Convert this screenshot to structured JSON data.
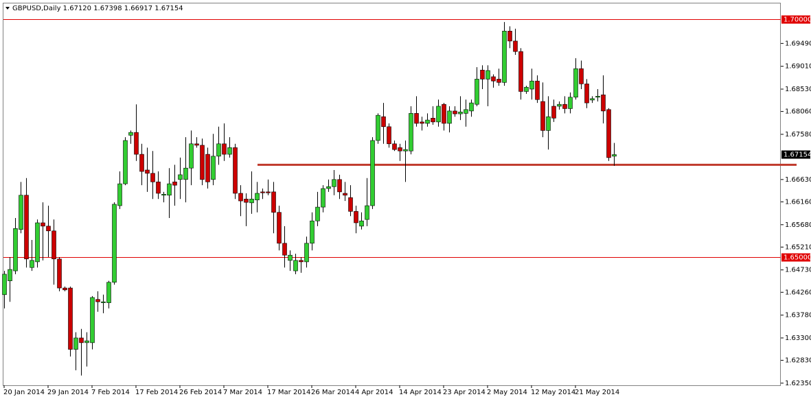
{
  "chart_data": {
    "type": "candlestick",
    "title": "GBPUSD,Daily 1.67120 1.67398 1.66917 1.67154",
    "up_color": "#32cd32",
    "down_color": "#cc0000",
    "categories": [
      "20 Jan 2014",
      null,
      null,
      null,
      null,
      null,
      null,
      null,
      "29 Jan 2014",
      null,
      null,
      null,
      null,
      null,
      null,
      null,
      "7 Feb 2014",
      null,
      null,
      null,
      null,
      null,
      null,
      null,
      "17 Feb 2014",
      null,
      null,
      null,
      null,
      null,
      null,
      null,
      "26 Feb 2014",
      null,
      null,
      null,
      null,
      null,
      null,
      null,
      "7 Mar 2014",
      null,
      null,
      null,
      null,
      null,
      null,
      null,
      "17 Mar 2014",
      null,
      null,
      null,
      null,
      null,
      null,
      null,
      "26 Mar 2014",
      null,
      null,
      null,
      null,
      null,
      null,
      null,
      "4 Apr 2014",
      null,
      null,
      null,
      null,
      null,
      null,
      null,
      "14 Apr 2014",
      null,
      null,
      null,
      null,
      null,
      null,
      null,
      "23 Apr 2014",
      null,
      null,
      null,
      null,
      null,
      null,
      null,
      "2 May 2014",
      null,
      null,
      null,
      null,
      null,
      null,
      null,
      "12 May 2014",
      null,
      null,
      null,
      null,
      null,
      null,
      null,
      "21 May 2014",
      null,
      null,
      null,
      null,
      null,
      null,
      null
    ],
    "ohlc": [
      [
        1.6421,
        1.6471,
        1.6392,
        1.6464
      ],
      [
        1.645,
        1.65,
        1.6406,
        1.6474
      ],
      [
        1.6471,
        1.6582,
        1.6464,
        1.656
      ],
      [
        1.6558,
        1.6658,
        1.655,
        1.663
      ],
      [
        1.663,
        1.6666,
        1.6478,
        1.6496
      ],
      [
        1.6478,
        1.6536,
        1.6471,
        1.6493
      ],
      [
        1.649,
        1.6579,
        1.6478,
        1.6572
      ],
      [
        1.6572,
        1.6615,
        1.6493,
        1.6565
      ],
      [
        1.6565,
        1.6608,
        1.65,
        1.6555
      ],
      [
        1.6555,
        1.6579,
        1.6442,
        1.6496
      ],
      [
        1.6496,
        1.65,
        1.6428,
        1.6435
      ],
      [
        1.6435,
        1.6438,
        1.6428,
        1.6431
      ],
      [
        1.6435,
        1.6438,
        1.6291,
        1.6306
      ],
      [
        1.6306,
        1.6342,
        1.6262,
        1.633
      ],
      [
        1.633,
        1.6349,
        1.6251,
        1.632
      ],
      [
        1.632,
        1.6342,
        1.627,
        1.6324
      ],
      [
        1.632,
        1.6418,
        1.6306,
        1.6415
      ],
      [
        1.6411,
        1.6428,
        1.6385,
        1.6406
      ],
      [
        1.6404,
        1.6421,
        1.6382,
        1.6406
      ],
      [
        1.6404,
        1.645,
        1.6392,
        1.6447
      ],
      [
        1.6447,
        1.6615,
        1.6442,
        1.6611
      ],
      [
        1.6608,
        1.668,
        1.6601,
        1.6654
      ],
      [
        1.6654,
        1.6752,
        1.6651,
        1.6745
      ],
      [
        1.6756,
        1.6766,
        1.6738,
        1.6762
      ],
      [
        1.6762,
        1.6821,
        1.6702,
        1.6716
      ],
      [
        1.6716,
        1.6738,
        1.6651,
        1.668
      ],
      [
        1.6683,
        1.673,
        1.6637,
        1.6676
      ],
      [
        1.6676,
        1.6723,
        1.6622,
        1.6658
      ],
      [
        1.6658,
        1.668,
        1.6622,
        1.6634
      ],
      [
        1.663,
        1.6637,
        1.6615,
        1.6632
      ],
      [
        1.663,
        1.6687,
        1.6582,
        1.6654
      ],
      [
        1.6658,
        1.6694,
        1.6608,
        1.6651
      ],
      [
        1.6663,
        1.6709,
        1.6622,
        1.6673
      ],
      [
        1.6663,
        1.6752,
        1.6615,
        1.6687
      ],
      [
        1.6687,
        1.6766,
        1.6651,
        1.6738
      ],
      [
        1.6738,
        1.6752,
        1.673,
        1.6735
      ],
      [
        1.6735,
        1.6749,
        1.6651,
        1.6663
      ],
      [
        1.6716,
        1.673,
        1.6644,
        1.6658
      ],
      [
        1.6663,
        1.6759,
        1.6651,
        1.6712
      ],
      [
        1.6712,
        1.6774,
        1.6694,
        1.6738
      ],
      [
        1.6738,
        1.6781,
        1.6702,
        1.6716
      ],
      [
        1.6716,
        1.6752,
        1.6709,
        1.673
      ],
      [
        1.673,
        1.6738,
        1.6622,
        1.6634
      ],
      [
        1.6634,
        1.6651,
        1.6586,
        1.6618
      ],
      [
        1.6622,
        1.6634,
        1.6565,
        1.6615
      ],
      [
        1.6614,
        1.668,
        1.6591,
        1.6622
      ],
      [
        1.662,
        1.6658,
        1.6594,
        1.6634
      ],
      [
        1.6637,
        1.6644,
        1.6622,
        1.6635
      ],
      [
        1.6637,
        1.6663,
        1.663,
        1.6635
      ],
      [
        1.6637,
        1.6658,
        1.655,
        1.6594
      ],
      [
        1.6594,
        1.6608,
        1.6514,
        1.6529
      ],
      [
        1.6529,
        1.6565,
        1.6478,
        1.6504
      ],
      [
        1.6493,
        1.6514,
        1.6471,
        1.6504
      ],
      [
        1.6471,
        1.6507,
        1.6464,
        1.6493
      ],
      [
        1.6493,
        1.65,
        1.6467,
        1.649
      ],
      [
        1.649,
        1.6543,
        1.6478,
        1.6529
      ],
      [
        1.6529,
        1.6594,
        1.6514,
        1.6576
      ],
      [
        1.6576,
        1.6637,
        1.6565,
        1.6605
      ],
      [
        1.6605,
        1.6651,
        1.6594,
        1.6644
      ],
      [
        1.6644,
        1.6663,
        1.6637,
        1.6648
      ],
      [
        1.6648,
        1.6683,
        1.663,
        1.6663
      ],
      [
        1.6663,
        1.6673,
        1.6622,
        1.6637
      ],
      [
        1.6634,
        1.6658,
        1.6618,
        1.663
      ],
      [
        1.6625,
        1.6651,
        1.6586,
        1.6596
      ],
      [
        1.6596,
        1.6608,
        1.655,
        1.6572
      ],
      [
        1.6565,
        1.6594,
        1.6558,
        1.6576
      ],
      [
        1.6579,
        1.6666,
        1.6565,
        1.6608
      ],
      [
        1.6608,
        1.6752,
        1.6601,
        1.6745
      ],
      [
        1.6745,
        1.6802,
        1.6738,
        1.6798
      ],
      [
        1.6795,
        1.6824,
        1.6738,
        1.6774
      ],
      [
        1.6774,
        1.6781,
        1.673,
        1.6738
      ],
      [
        1.6738,
        1.6745,
        1.6723,
        1.6726
      ],
      [
        1.673,
        1.6738,
        1.6702,
        1.6723
      ],
      [
        1.6723,
        1.6745,
        1.6658,
        1.6726
      ],
      [
        1.6723,
        1.6817,
        1.6716,
        1.6802
      ],
      [
        1.6802,
        1.6838,
        1.6774,
        1.6781
      ],
      [
        1.6784,
        1.6795,
        1.6766,
        1.6781
      ],
      [
        1.6781,
        1.6802,
        1.6774,
        1.6788
      ],
      [
        1.6792,
        1.6817,
        1.6778,
        1.6784
      ],
      [
        1.6784,
        1.6831,
        1.6774,
        1.6817
      ],
      [
        1.6821,
        1.6824,
        1.6766,
        1.6781
      ],
      [
        1.6781,
        1.6817,
        1.6762,
        1.6807
      ],
      [
        1.6807,
        1.6817,
        1.6795,
        1.6801
      ],
      [
        1.6801,
        1.6838,
        1.6788,
        1.6805
      ],
      [
        1.6802,
        1.6831,
        1.6774,
        1.681
      ],
      [
        1.6807,
        1.6831,
        1.6795,
        1.6824
      ],
      [
        1.6821,
        1.6899,
        1.6817,
        1.6874
      ],
      [
        1.6893,
        1.6903,
        1.6853,
        1.6874
      ],
      [
        1.6874,
        1.6903,
        1.6817,
        1.6892
      ],
      [
        1.6879,
        1.6884,
        1.6856,
        1.687
      ],
      [
        1.6874,
        1.6896,
        1.686,
        1.6867
      ],
      [
        1.6867,
        1.6994,
        1.686,
        1.6975
      ],
      [
        1.6975,
        1.6985,
        1.6939,
        1.6954
      ],
      [
        1.6954,
        1.698,
        1.6925,
        1.6932
      ],
      [
        1.6932,
        1.6939,
        1.6831,
        1.6848
      ],
      [
        1.6848,
        1.686,
        1.6843,
        1.6857
      ],
      [
        1.6853,
        1.6896,
        1.6831,
        1.687
      ],
      [
        1.687,
        1.6882,
        1.6824,
        1.6831
      ],
      [
        1.6827,
        1.6867,
        1.6752,
        1.6766
      ],
      [
        1.6766,
        1.6838,
        1.6726,
        1.6795
      ],
      [
        1.6817,
        1.6831,
        1.6784,
        1.6792
      ],
      [
        1.6817,
        1.6827,
        1.681,
        1.6821
      ],
      [
        1.6821,
        1.6838,
        1.6802,
        1.6812
      ],
      [
        1.6812,
        1.6846,
        1.6802,
        1.6836
      ],
      [
        1.6836,
        1.6918,
        1.6831,
        1.6896
      ],
      [
        1.6896,
        1.6913,
        1.6853,
        1.6864
      ],
      [
        1.6864,
        1.6874,
        1.6813,
        1.6824
      ],
      [
        1.683,
        1.6838,
        1.6824,
        1.6833
      ],
      [
        1.6836,
        1.6853,
        1.6827,
        1.6838
      ],
      [
        1.6841,
        1.6882,
        1.6781,
        1.6807
      ],
      [
        1.681,
        1.6813,
        1.6702,
        1.6709
      ],
      [
        1.6712,
        1.67398,
        1.66917,
        1.67154
      ]
    ],
    "ylim": [
      1.62305,
      1.70403
    ],
    "yticks": [
      {
        "value": 1.6949,
        "label": "1.69490"
      },
      {
        "value": 1.6901,
        "label": "1.69010"
      },
      {
        "value": 1.6853,
        "label": "1.68530"
      },
      {
        "value": 1.6806,
        "label": "1.68060"
      },
      {
        "value": 1.6758,
        "label": "1.67580"
      },
      {
        "value": 1.6663,
        "label": "1.66630"
      },
      {
        "value": 1.6616,
        "label": "1.66160"
      },
      {
        "value": 1.6568,
        "label": "1.65680"
      },
      {
        "value": 1.6521,
        "label": "1.65210"
      },
      {
        "value": 1.6473,
        "label": "1.64730"
      },
      {
        "value": 1.6426,
        "label": "1.64260"
      },
      {
        "value": 1.6378,
        "label": "1.63780"
      },
      {
        "value": 1.633,
        "label": "1.63300"
      },
      {
        "value": 1.6283,
        "label": "1.62830"
      },
      {
        "value": 1.6235,
        "label": "1.62350"
      }
    ],
    "hlines": [
      {
        "value": 1.7,
        "label": "1.70000",
        "color": "#e00000"
      },
      {
        "value": 1.65,
        "label": "1.65000",
        "color": "#e00000"
      }
    ],
    "support_line": {
      "value": 1.6694,
      "color": "#c0392b"
    }
  }
}
